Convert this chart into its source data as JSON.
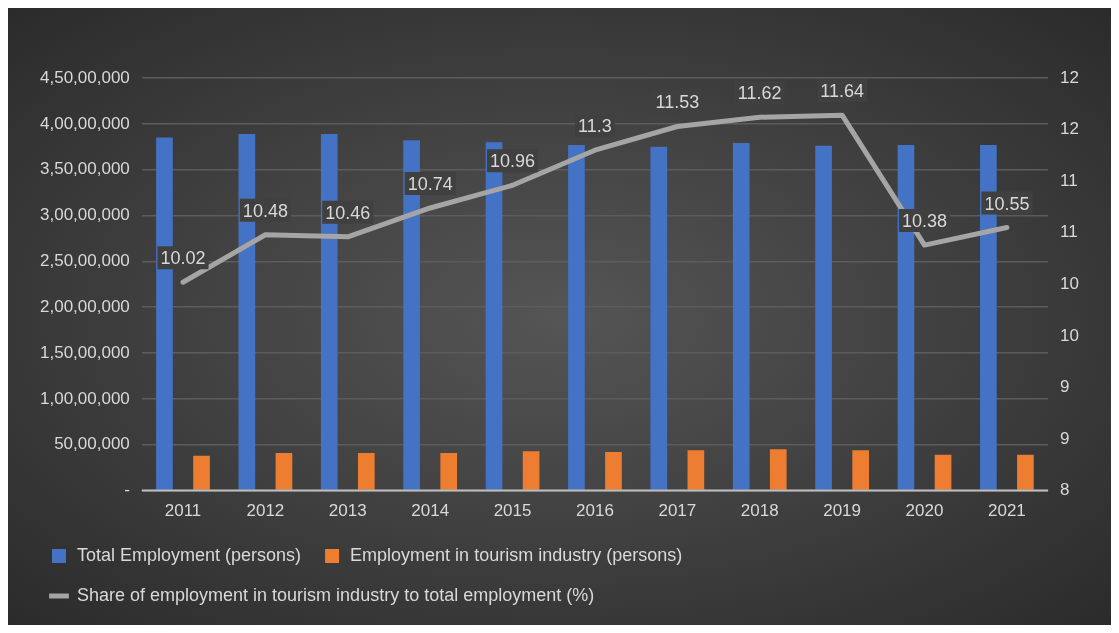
{
  "chart_data": {
    "type": "bar",
    "categories": [
      "2011",
      "2012",
      "2013",
      "2014",
      "2015",
      "2016",
      "2017",
      "2018",
      "2019",
      "2020",
      "2021"
    ],
    "series": [
      {
        "name": "Total Employment (persons)",
        "color": "#4472c4",
        "values": [
          38500000,
          38900000,
          38900000,
          38200000,
          38000000,
          37700000,
          37500000,
          37900000,
          37600000,
          37700000,
          37700000
        ]
      },
      {
        "name": "Employment in tourism industry (persons)",
        "color": "#ed7d31",
        "values": [
          3800000,
          4100000,
          4100000,
          4100000,
          4300000,
          4200000,
          4400000,
          4500000,
          4400000,
          3900000,
          3900000
        ]
      },
      {
        "name": "Share of employment in tourism industry to total employment (%)",
        "type": "line",
        "axis": "y2",
        "color": "#a5a5a5",
        "marker": "none",
        "values": [
          10.02,
          10.48,
          10.46,
          10.74,
          10.96,
          11.3,
          11.53,
          11.62,
          11.64,
          10.38,
          10.55
        ],
        "value_labels": [
          "10.02",
          "10.48",
          "10.46",
          "10.74",
          "10.96",
          "11.3",
          "11.53",
          "11.62",
          "11.64",
          "10.38",
          "10.55"
        ]
      }
    ],
    "ylim": [
      0,
      45000000
    ],
    "yticks": [
      {
        "value": 0,
        "label": "-"
      },
      {
        "value": 5000000,
        "label": "50,00,000"
      },
      {
        "value": 10000000,
        "label": "1,00,00,000"
      },
      {
        "value": 15000000,
        "label": "1,50,00,000"
      },
      {
        "value": 20000000,
        "label": "2,00,00,000"
      },
      {
        "value": 25000000,
        "label": "2,50,00,000"
      },
      {
        "value": 30000000,
        "label": "3,00,00,000"
      },
      {
        "value": 35000000,
        "label": "3,50,00,000"
      },
      {
        "value": 40000000,
        "label": "4,00,00,000"
      },
      {
        "value": 45000000,
        "label": "4,50,00,000"
      }
    ],
    "y2lim": [
      8,
      12
    ],
    "y2ticks": [
      {
        "value": 8,
        "label": "8"
      },
      {
        "value": 8.5,
        "label": "9"
      },
      {
        "value": 9,
        "label": "9"
      },
      {
        "value": 9.5,
        "label": "10"
      },
      {
        "value": 10,
        "label": "10"
      },
      {
        "value": 10.5,
        "label": "11"
      },
      {
        "value": 11,
        "label": "11"
      },
      {
        "value": 11.5,
        "label": "12"
      },
      {
        "value": 12,
        "label": "12"
      }
    ],
    "grid": "y",
    "legend": "bottom"
  }
}
